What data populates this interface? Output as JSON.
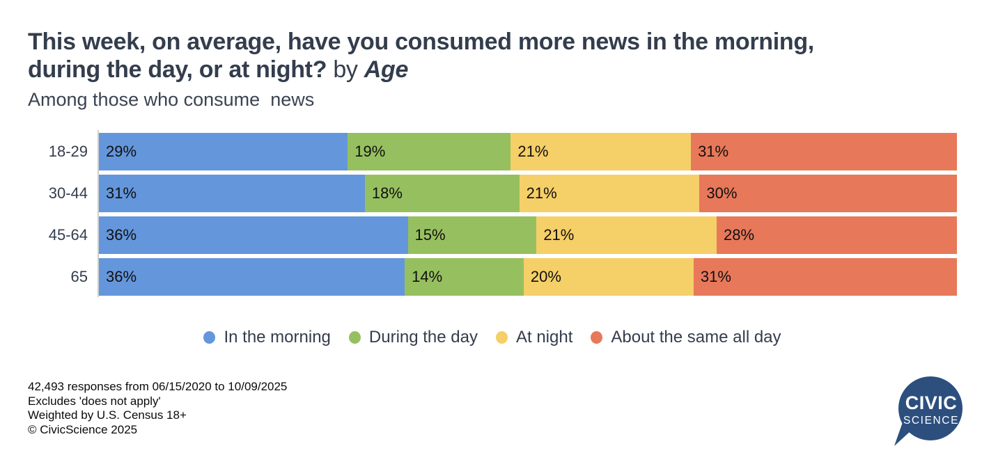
{
  "title": {
    "line1": "This week, on average, have you consumed more news in the morning,",
    "line2_question": "during the day, or at night?",
    "by_connector": " by ",
    "group_name": "Age"
  },
  "subtitle": "Among those who consume  news",
  "chart_data": {
    "type": "bar",
    "orientation": "horizontal-stacked",
    "title": "This week, on average, have you consumed more news in the morning, during the day, or at night? by Age",
    "subtitle": "Among those who consume news",
    "categories": [
      "18-29",
      "30-44",
      "45-64",
      "65"
    ],
    "series": [
      {
        "name": "In the morning",
        "color": "#6496db",
        "values": [
          29,
          31,
          36,
          36
        ]
      },
      {
        "name": "During the day",
        "color": "#96c05f",
        "values": [
          19,
          18,
          15,
          14
        ]
      },
      {
        "name": "At night",
        "color": "#f5cf67",
        "values": [
          21,
          21,
          21,
          20
        ]
      },
      {
        "name": "About the same all day",
        "color": "#e8785a",
        "values": [
          31,
          30,
          28,
          31
        ]
      }
    ],
    "value_format": "percent",
    "value_labels": "inside-left",
    "xlim": [
      0,
      100
    ],
    "grid": false,
    "legend_position": "bottom"
  },
  "footer": {
    "lines": [
      "42,493 responses from 06/15/2020 to 10/09/2025",
      "Excludes 'does not apply'",
      "Weighted by U.S. Census 18+",
      "© CivicScience 2025"
    ]
  },
  "logo": {
    "line1": "CIVIC",
    "line2": "SCIENCE",
    "bubble_color": "#2d4f7e",
    "text_color": "#ffffff"
  }
}
